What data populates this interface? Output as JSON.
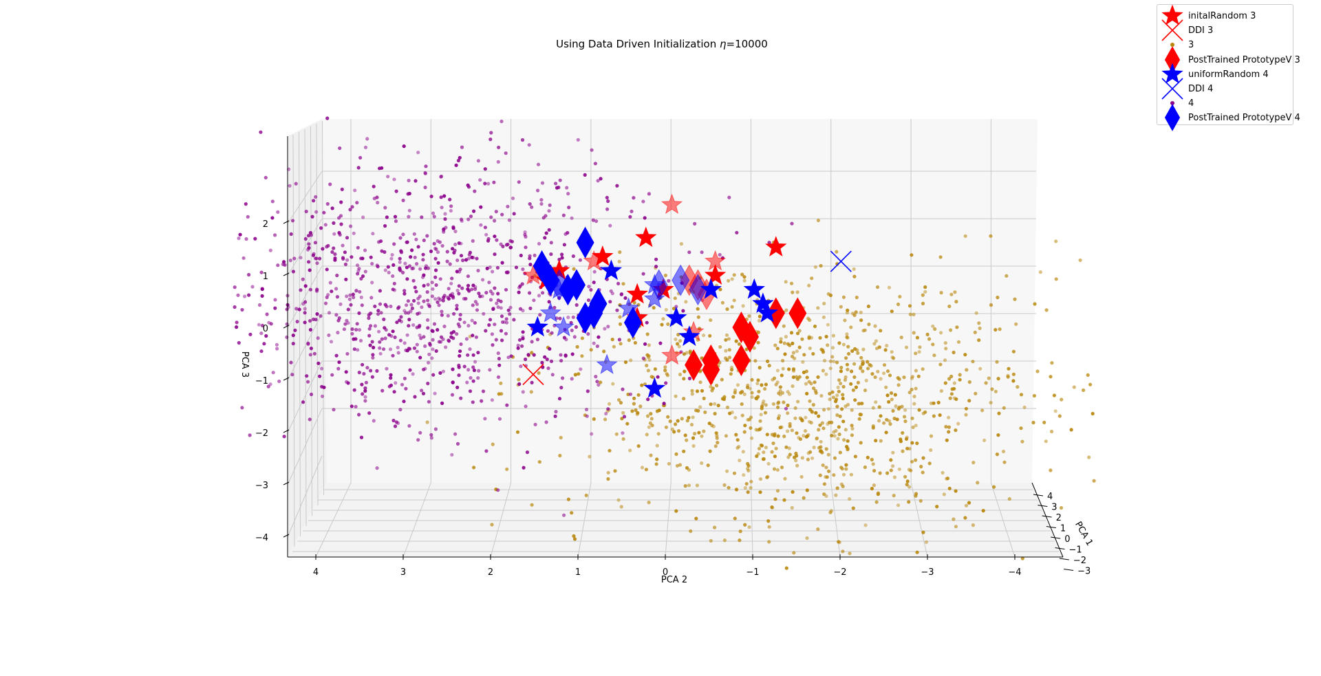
{
  "chart_data": {
    "type": "scatter",
    "title_prefix": "Using Data Driven Initialization ",
    "title_symbol": "η",
    "title_suffix": "=10000",
    "xlabel": "PCA 2",
    "ylabel": "PCA 1",
    "zlabel": "PCA 3",
    "x_ticks": [
      "4",
      "3",
      "2",
      "1",
      "0",
      "−1",
      "−2",
      "−3",
      "−4"
    ],
    "y_ticks": [
      "4",
      "3",
      "2",
      "1",
      "0",
      "−1",
      "−2",
      "−3"
    ],
    "z_ticks": [
      "2",
      "1",
      "0",
      "−1",
      "−2",
      "−3",
      "−4"
    ],
    "grid": true,
    "legend_position": "top-right",
    "colors": {
      "class3_points": "#b8860b",
      "class4_points": "#8b008b",
      "red": "#ff0000",
      "blue": "#0000ff",
      "pane": "#f2f2f2",
      "grid": "#c8c8c8"
    },
    "legend": [
      {
        "label": "initalRandom 3",
        "marker": "star",
        "color": "#ff0000"
      },
      {
        "label": "DDI 3",
        "marker": "x",
        "color": "#ff0000"
      },
      {
        "label": "3",
        "marker": "dot",
        "color": "#b8860b"
      },
      {
        "label": "PostTrained PrototypeV 3",
        "marker": "diamond",
        "color": "#ff0000"
      },
      {
        "label": "uniformRandom 4",
        "marker": "star",
        "color": "#0000ff"
      },
      {
        "label": "DDI 4",
        "marker": "x",
        "color": "#0000ff"
      },
      {
        "label": "4",
        "marker": "dot",
        "color": "#8b008b"
      },
      {
        "label": "PostTrained PrototypeV 4",
        "marker": "diamond",
        "color": "#0000ff"
      }
    ],
    "series": [
      {
        "name": "initalRandom 3",
        "marker": "star",
        "color": "#ff0000",
        "points": [
          {
            "pca2": -0.1,
            "pca3": 2.6,
            "alpha": 0.5
          },
          {
            "pca2": 0.2,
            "pca3": 1.9,
            "alpha": 1
          },
          {
            "pca2": -1.3,
            "pca3": 1.7,
            "alpha": 1
          },
          {
            "pca2": 0.7,
            "pca3": 1.5,
            "alpha": 1
          },
          {
            "pca2": 0.8,
            "pca3": 1.4,
            "alpha": 0.5
          },
          {
            "pca2": 1.2,
            "pca3": 1.2,
            "alpha": 1
          },
          {
            "pca2": 1.5,
            "pca3": 1.1,
            "alpha": 0.5
          },
          {
            "pca2": 1.35,
            "pca3": 1.0,
            "alpha": 1
          },
          {
            "pca2": -0.6,
            "pca3": 1.4,
            "alpha": 0.5
          },
          {
            "pca2": -0.6,
            "pca3": 1.1,
            "alpha": 1
          },
          {
            "pca2": 0.3,
            "pca3": 0.7,
            "alpha": 1
          },
          {
            "pca2": 0.0,
            "pca3": 0.8,
            "alpha": 1
          },
          {
            "pca2": 0.3,
            "pca3": 0.2,
            "alpha": 1
          },
          {
            "pca2": -0.35,
            "pca3": -0.1,
            "alpha": 0.5
          },
          {
            "pca2": -0.1,
            "pca3": -0.6,
            "alpha": 0.5
          }
        ]
      },
      {
        "name": "DDI 3",
        "marker": "x",
        "color": "#ff0000",
        "points": [
          {
            "pca2": 1.5,
            "pca3": -1.0,
            "alpha": 1
          }
        ]
      },
      {
        "name": "PostTrained PrototypeV 3",
        "marker": "diamond",
        "color": "#ff0000",
        "points": [
          {
            "pca2": -0.3,
            "pca3": 1.0,
            "alpha": 0.5
          },
          {
            "pca2": -0.4,
            "pca3": 0.9,
            "alpha": 0.5
          },
          {
            "pca2": -0.5,
            "pca3": 0.7,
            "alpha": 0.5
          },
          {
            "pca2": -0.9,
            "pca3": 0.0,
            "alpha": 1
          },
          {
            "pca2": -1.0,
            "pca3": -0.2,
            "alpha": 1
          },
          {
            "pca2": -1.3,
            "pca3": 0.3,
            "alpha": 1
          },
          {
            "pca2": -1.55,
            "pca3": 0.3,
            "alpha": 1
          },
          {
            "pca2": -0.35,
            "pca3": -0.8,
            "alpha": 1
          },
          {
            "pca2": -0.55,
            "pca3": -0.7,
            "alpha": 1
          },
          {
            "pca2": -0.55,
            "pca3": -0.9,
            "alpha": 1
          },
          {
            "pca2": -0.9,
            "pca3": -0.7,
            "alpha": 1
          }
        ]
      },
      {
        "name": "uniformRandom 4",
        "marker": "star",
        "color": "#0000ff",
        "points": [
          {
            "pca2": 0.6,
            "pca3": 1.2,
            "alpha": 1
          },
          {
            "pca2": 1.2,
            "pca3": 0.8,
            "alpha": 0.5
          },
          {
            "pca2": 1.3,
            "pca3": 0.3,
            "alpha": 0.5
          },
          {
            "pca2": 1.45,
            "pca3": 0.0,
            "alpha": 1
          },
          {
            "pca2": 1.15,
            "pca3": 0.0,
            "alpha": 0.5
          },
          {
            "pca2": 0.4,
            "pca3": 0.4,
            "alpha": 0.5
          },
          {
            "pca2": 0.1,
            "pca3": 0.6,
            "alpha": 0.5
          },
          {
            "pca2": 0.1,
            "pca3": 0.9,
            "alpha": 0.5
          },
          {
            "pca2": -0.15,
            "pca3": 0.2,
            "alpha": 1
          },
          {
            "pca2": -0.3,
            "pca3": -0.2,
            "alpha": 1
          },
          {
            "pca2": -0.55,
            "pca3": 0.8,
            "alpha": 1
          },
          {
            "pca2": -1.05,
            "pca3": 0.8,
            "alpha": 1
          },
          {
            "pca2": -1.15,
            "pca3": 0.5,
            "alpha": 1
          },
          {
            "pca2": -1.2,
            "pca3": 0.3,
            "alpha": 1
          },
          {
            "pca2": 0.65,
            "pca3": -0.8,
            "alpha": 0.5
          },
          {
            "pca2": 0.1,
            "pca3": -1.3,
            "alpha": 1
          }
        ]
      },
      {
        "name": "DDI 4",
        "marker": "x",
        "color": "#0000ff",
        "points": [
          {
            "pca2": -2.05,
            "pca3": 1.4,
            "alpha": 1
          }
        ]
      },
      {
        "name": "PostTrained PrototypeV 4",
        "marker": "diamond",
        "color": "#0000ff",
        "points": [
          {
            "pca2": 0.9,
            "pca3": 1.8,
            "alpha": 1
          },
          {
            "pca2": 1.4,
            "pca3": 1.3,
            "alpha": 1
          },
          {
            "pca2": 1.3,
            "pca3": 1.0,
            "alpha": 1
          },
          {
            "pca2": 1.2,
            "pca3": 0.9,
            "alpha": 0.5
          },
          {
            "pca2": 1.1,
            "pca3": 0.8,
            "alpha": 1
          },
          {
            "pca2": 1.0,
            "pca3": 0.9,
            "alpha": 1
          },
          {
            "pca2": 0.75,
            "pca3": 0.5,
            "alpha": 1
          },
          {
            "pca2": 0.8,
            "pca3": 0.3,
            "alpha": 1
          },
          {
            "pca2": 0.9,
            "pca3": 0.2,
            "alpha": 1
          },
          {
            "pca2": 0.35,
            "pca3": 0.1,
            "alpha": 1
          },
          {
            "pca2": -0.2,
            "pca3": 1.0,
            "alpha": 0.5
          },
          {
            "pca2": -0.4,
            "pca3": 0.8,
            "alpha": 0.5
          },
          {
            "pca2": 0.05,
            "pca3": 0.9,
            "alpha": 0.5
          }
        ]
      }
    ],
    "clouds": [
      {
        "name": "3",
        "color": "#b8860b",
        "count": 1050,
        "center": [
          -1.7,
          -1.5
        ],
        "spread": [
          1.35,
          1.35
        ]
      },
      {
        "name": "4",
        "color": "#8b008b",
        "count": 1050,
        "center": [
          2.6,
          0.6
        ],
        "spread": [
          1.3,
          1.35
        ]
      }
    ]
  }
}
